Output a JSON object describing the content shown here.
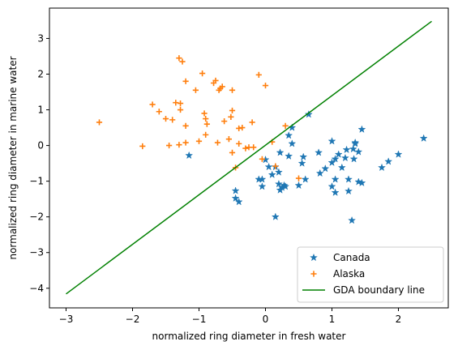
{
  "chart_data": {
    "type": "scatter",
    "title": "",
    "xlabel": "normalized ring diameter in fresh water",
    "ylabel": "normalized ring diameter in marine water",
    "xlim": [
      -3.25,
      2.75
    ],
    "ylim": [
      -4.55,
      3.85
    ],
    "xticks": [
      -3,
      -2,
      -1,
      0,
      1,
      2
    ],
    "yticks": [
      -4,
      -3,
      -2,
      -1,
      0,
      1,
      2,
      3
    ],
    "grid": false,
    "legend_position": "bottom-right",
    "series": [
      {
        "name": "Canada",
        "marker": "star",
        "color": "#1f77b4",
        "points": [
          [
            -1.15,
            -0.28
          ],
          [
            -0.45,
            -1.27
          ],
          [
            -0.45,
            -1.48
          ],
          [
            -0.4,
            -1.58
          ],
          [
            -0.1,
            -0.95
          ],
          [
            -0.05,
            -0.95
          ],
          [
            -0.05,
            -1.15
          ],
          [
            0.0,
            -0.4
          ],
          [
            0.05,
            -0.6
          ],
          [
            0.1,
            -0.82
          ],
          [
            0.15,
            -0.6
          ],
          [
            0.15,
            -2.0
          ],
          [
            0.2,
            -0.75
          ],
          [
            0.2,
            -1.08
          ],
          [
            0.22,
            -0.2
          ],
          [
            0.25,
            -1.18
          ],
          [
            0.28,
            -1.12
          ],
          [
            0.3,
            -1.15
          ],
          [
            0.35,
            0.28
          ],
          [
            0.35,
            -0.3
          ],
          [
            0.4,
            0.5
          ],
          [
            0.4,
            0.05
          ],
          [
            0.5,
            -1.12
          ],
          [
            0.55,
            -0.5
          ],
          [
            0.57,
            -0.32
          ],
          [
            0.6,
            -0.95
          ],
          [
            0.65,
            0.87
          ],
          [
            0.8,
            -0.2
          ],
          [
            0.82,
            -0.78
          ],
          [
            0.9,
            -0.65
          ],
          [
            1.0,
            0.12
          ],
          [
            1.0,
            -0.48
          ],
          [
            1.0,
            -1.15
          ],
          [
            1.05,
            -0.38
          ],
          [
            1.05,
            -0.95
          ],
          [
            1.05,
            -1.32
          ],
          [
            1.1,
            -0.25
          ],
          [
            1.15,
            -0.62
          ],
          [
            1.2,
            -0.35
          ],
          [
            1.22,
            -0.12
          ],
          [
            1.25,
            -0.95
          ],
          [
            1.25,
            -1.28
          ],
          [
            1.3,
            -2.1
          ],
          [
            1.32,
            -0.1
          ],
          [
            1.35,
            0.08
          ],
          [
            1.35,
            0.05
          ],
          [
            1.4,
            -0.18
          ],
          [
            1.4,
            -1.02
          ],
          [
            1.45,
            0.45
          ],
          [
            1.45,
            -1.05
          ],
          [
            1.75,
            -0.62
          ],
          [
            1.85,
            -0.45
          ],
          [
            2.0,
            -0.25
          ],
          [
            2.38,
            0.2
          ],
          [
            0.22,
            -1.25
          ],
          [
            1.33,
            -0.38
          ]
        ]
      },
      {
        "name": "Alaska",
        "marker": "plus",
        "color": "#ff7f0e",
        "points": [
          [
            -2.5,
            0.65
          ],
          [
            -1.85,
            -0.02
          ],
          [
            -1.7,
            1.15
          ],
          [
            -1.6,
            0.95
          ],
          [
            -1.5,
            0.75
          ],
          [
            -1.45,
            0.0
          ],
          [
            -1.4,
            0.72
          ],
          [
            -1.35,
            1.2
          ],
          [
            -1.3,
            2.45
          ],
          [
            -1.3,
            0.02
          ],
          [
            -1.28,
            1.18
          ],
          [
            -1.28,
            1.0
          ],
          [
            -1.25,
            2.35
          ],
          [
            -1.2,
            1.8
          ],
          [
            -1.2,
            0.55
          ],
          [
            -1.2,
            0.08
          ],
          [
            -1.05,
            1.55
          ],
          [
            -1.0,
            0.12
          ],
          [
            -0.95,
            2.02
          ],
          [
            -0.92,
            0.9
          ],
          [
            -0.9,
            0.75
          ],
          [
            -0.9,
            0.3
          ],
          [
            -0.88,
            0.6
          ],
          [
            -0.78,
            1.75
          ],
          [
            -0.75,
            1.82
          ],
          [
            -0.72,
            0.08
          ],
          [
            -0.7,
            1.55
          ],
          [
            -0.68,
            1.6
          ],
          [
            -0.65,
            1.65
          ],
          [
            -0.62,
            0.68
          ],
          [
            -0.55,
            0.18
          ],
          [
            -0.52,
            0.8
          ],
          [
            -0.5,
            1.55
          ],
          [
            -0.5,
            0.98
          ],
          [
            -0.5,
            -0.2
          ],
          [
            -0.4,
            0.48
          ],
          [
            -0.4,
            0.05
          ],
          [
            -0.35,
            0.5
          ],
          [
            -0.3,
            -0.08
          ],
          [
            -0.25,
            -0.05
          ],
          [
            -0.2,
            0.65
          ],
          [
            -0.18,
            -0.05
          ],
          [
            -0.1,
            1.98
          ],
          [
            -0.05,
            -0.38
          ],
          [
            0.0,
            1.68
          ],
          [
            0.1,
            0.1
          ],
          [
            0.15,
            -0.58
          ],
          [
            0.3,
            0.55
          ],
          [
            0.5,
            -0.92
          ],
          [
            -0.45,
            -0.62
          ]
        ]
      },
      {
        "name": "GDA boundary line",
        "marker": "line",
        "color": "#008000",
        "points": [
          [
            -3.0,
            -4.16
          ],
          [
            2.5,
            3.48
          ]
        ]
      }
    ]
  }
}
